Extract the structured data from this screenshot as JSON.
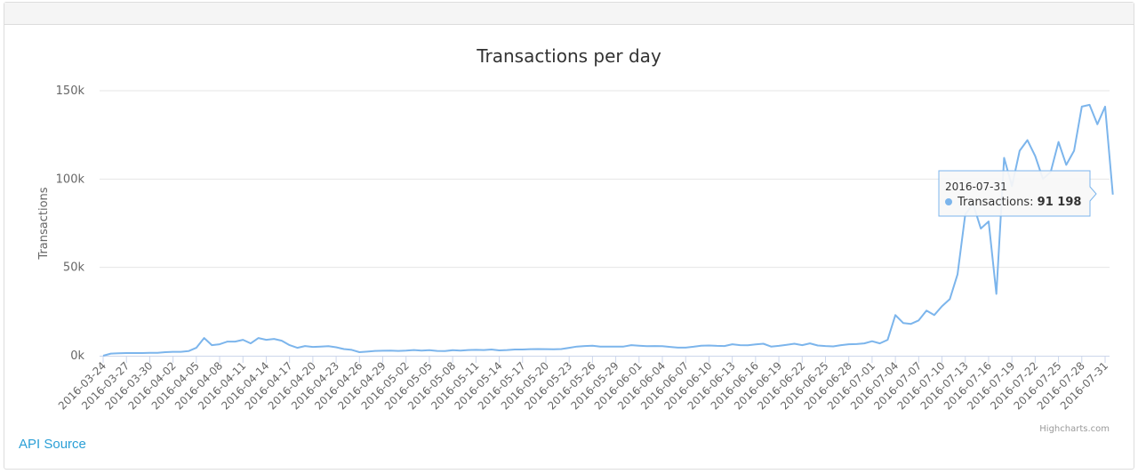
{
  "panel": {
    "api_source_label": "API Source"
  },
  "credits": "Highcharts.com",
  "tooltip": {
    "date": "2016-07-31",
    "series": "Transactions",
    "value": "91 198"
  },
  "colors": {
    "line": "#7cb5ec",
    "grid": "#e6e6e6",
    "text": "#333333",
    "axis_text": "#666666",
    "link": "#2a9fd6"
  },
  "chart_data": {
    "type": "line",
    "title": "Transactions per day",
    "xlabel": "",
    "ylabel": "Transactions",
    "ylim": [
      0,
      150000
    ],
    "yticks": [
      0,
      50000,
      100000,
      150000
    ],
    "ytick_labels": [
      "0k",
      "50k",
      "100k",
      "150k"
    ],
    "grid": true,
    "legend": "none",
    "x_start": "2016-03-24",
    "x_end": "2016-07-31",
    "xtick_labels": [
      "2016-03-24",
      "2016-03-27",
      "2016-03-30",
      "2016-04-02",
      "2016-04-05",
      "2016-04-08",
      "2016-04-11",
      "2016-04-14",
      "2016-04-17",
      "2016-04-20",
      "2016-04-23",
      "2016-04-26",
      "2016-04-29",
      "2016-05-02",
      "2016-05-05",
      "2016-05-08",
      "2016-05-11",
      "2016-05-14",
      "2016-05-17",
      "2016-05-20",
      "2016-05-23",
      "2016-05-26",
      "2016-05-29",
      "2016-06-01",
      "2016-06-04",
      "2016-06-07",
      "2016-06-10",
      "2016-06-13",
      "2016-06-16",
      "2016-06-19",
      "2016-06-22",
      "2016-06-25",
      "2016-06-28",
      "2016-07-01",
      "2016-07-04",
      "2016-07-07",
      "2016-07-10",
      "2016-07-13",
      "2016-07-16",
      "2016-07-19",
      "2016-07-22",
      "2016-07-25",
      "2016-07-28",
      "2016-07-31"
    ],
    "series": [
      {
        "name": "Transactions",
        "values": [
          0,
          1200,
          1400,
          1500,
          1500,
          1500,
          1600,
          1600,
          2000,
          2200,
          2200,
          2600,
          4500,
          10000,
          6000,
          6500,
          8000,
          8000,
          9000,
          7000,
          10000,
          9000,
          9500,
          8500,
          6000,
          4500,
          5500,
          5000,
          5200,
          5400,
          4800,
          3800,
          3300,
          2000,
          2300,
          2700,
          2800,
          2900,
          2700,
          2900,
          3200,
          2900,
          3100,
          2700,
          2600,
          3100,
          2900,
          3200,
          3300,
          3200,
          3500,
          3000,
          3200,
          3500,
          3500,
          3700,
          3800,
          3700,
          3600,
          3800,
          4500,
          5200,
          5500,
          5700,
          5200,
          5200,
          5200,
          5200,
          6000,
          5700,
          5400,
          5500,
          5400,
          5000,
          4600,
          4600,
          5100,
          5700,
          5800,
          5600,
          5500,
          6500,
          6000,
          5900,
          6400,
          6800,
          5200,
          5600,
          6200,
          6800,
          6000,
          7000,
          5800,
          5500,
          5300,
          6000,
          6500,
          6600,
          7000,
          8200,
          7000,
          9000,
          23000,
          18500,
          18000,
          20000,
          25500,
          23000,
          28000,
          32000,
          46000,
          80000,
          86000,
          72000,
          76000,
          35000,
          112000,
          96000,
          116000,
          122000,
          113000,
          100000,
          104000,
          121000,
          108000,
          116000,
          141000,
          142000,
          131000,
          141000,
          91198
        ]
      }
    ]
  }
}
